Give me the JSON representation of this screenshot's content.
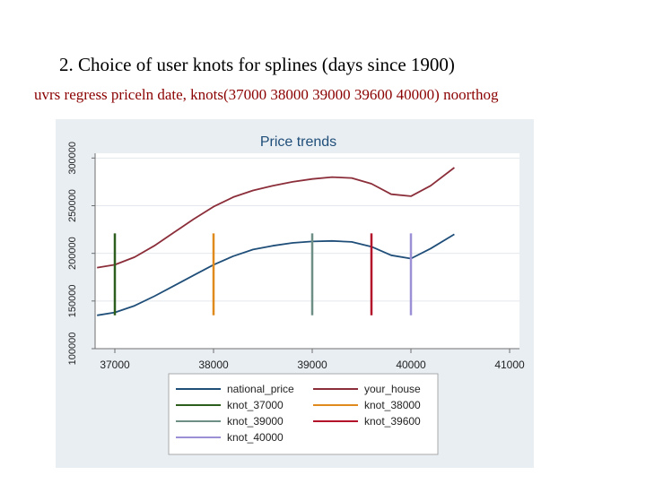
{
  "slide": {
    "title": "2. Choice of user knots for splines (days since 1900)",
    "command": "uvrs regress priceln date, knots(37000 38000 39000 39600 40000) noorthog"
  },
  "chart_data": {
    "type": "line",
    "title": "Price trends",
    "xlabel": "",
    "ylabel": "",
    "xlim": [
      36800,
      41100
    ],
    "ylim": [
      100000,
      305000
    ],
    "x_ticks": [
      37000,
      38000,
      39000,
      40000,
      41000
    ],
    "y_ticks": [
      100000,
      150000,
      200000,
      250000,
      300000
    ],
    "grid": true,
    "legend_position": "bottom",
    "series": [
      {
        "name": "national_price",
        "kind": "curve",
        "color": "#1f4e79",
        "x": [
          36820,
          37000,
          37200,
          37400,
          37600,
          37800,
          38000,
          38200,
          38400,
          38600,
          38800,
          39000,
          39200,
          39400,
          39600,
          39800,
          40000,
          40200,
          40440
        ],
        "y": [
          135000,
          138000,
          145000,
          155000,
          166000,
          177000,
          188000,
          197000,
          204000,
          208000,
          211000,
          212500,
          213000,
          212000,
          207000,
          198000,
          194500,
          205000,
          220000
        ]
      },
      {
        "name": "your_house",
        "kind": "curve",
        "color": "#8b2e3a",
        "x": [
          36820,
          37000,
          37200,
          37400,
          37600,
          37800,
          38000,
          38200,
          38400,
          38600,
          38800,
          39000,
          39200,
          39400,
          39600,
          39800,
          40000,
          40200,
          40440
        ],
        "y": [
          185000,
          188000,
          196000,
          208000,
          222000,
          236000,
          249000,
          259000,
          266000,
          271000,
          275000,
          278000,
          280000,
          279000,
          273000,
          262000,
          260000,
          271000,
          290000
        ]
      },
      {
        "name": "knot_37000",
        "kind": "knot",
        "color": "#2e5e1e",
        "x": [
          37000,
          37000
        ],
        "y": [
          135000,
          221000
        ]
      },
      {
        "name": "knot_38000",
        "kind": "knot",
        "color": "#e08a1e",
        "x": [
          38000,
          38000
        ],
        "y": [
          135000,
          221000
        ]
      },
      {
        "name": "knot_39000",
        "kind": "knot",
        "color": "#6e8f86",
        "x": [
          39000,
          39000
        ],
        "y": [
          135000,
          221000
        ]
      },
      {
        "name": "knot_39600",
        "kind": "knot",
        "color": "#b3102a",
        "x": [
          39600,
          39600
        ],
        "y": [
          135000,
          221000
        ]
      },
      {
        "name": "knot_40000",
        "kind": "knot",
        "color": "#9b8fd6",
        "x": [
          40000,
          40000
        ],
        "y": [
          135000,
          221000
        ]
      }
    ]
  },
  "colors": {
    "chart_background": "#e9eef3",
    "plot_background": "#ffffff",
    "grid": "#e3e8ee",
    "axis": "#6f6f6f",
    "title_text": "#1f4e79",
    "command_text": "#8b0000"
  }
}
